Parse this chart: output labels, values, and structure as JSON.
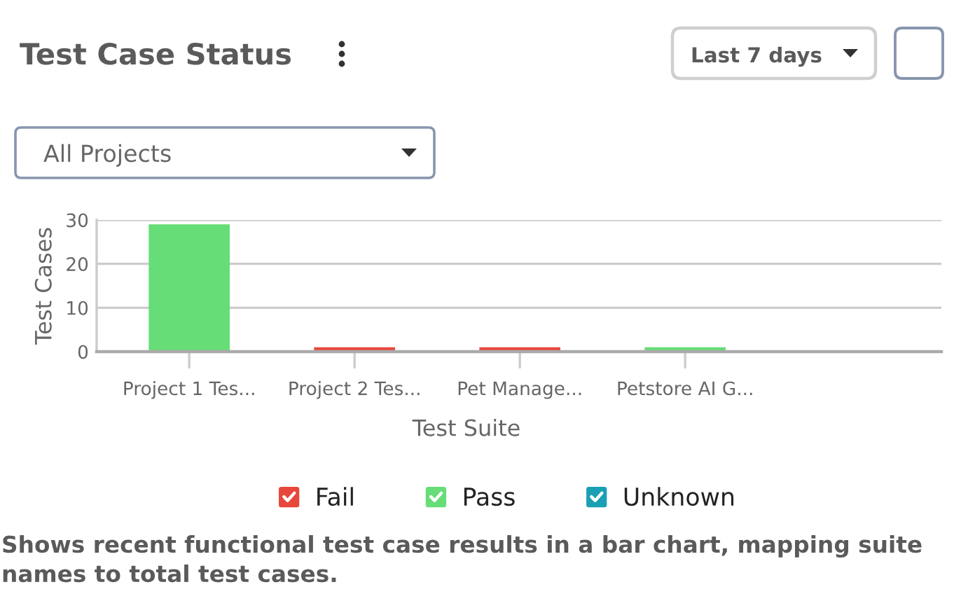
{
  "chart_data": {
    "type": "bar",
    "title": "Test Case Status",
    "xlabel": "Test Suite",
    "ylabel": "Test Cases",
    "categories": [
      "Project 1 Tes...",
      "Project 2 Tes...",
      "Pet Manage...",
      "Petstore AI G..."
    ],
    "series": [
      {
        "name": "Fail",
        "color": "#e8473b",
        "values": [
          null,
          1,
          1,
          null
        ]
      },
      {
        "name": "Pass",
        "color": "#66dd77",
        "values": [
          29,
          null,
          null,
          1
        ]
      },
      {
        "name": "Unknown",
        "values": [
          null,
          null,
          null,
          null
        ]
      }
    ],
    "stacked": true,
    "ylim": [
      0,
      30
    ],
    "yticks": [
      0,
      10,
      20,
      30
    ],
    "grid": "y",
    "legend": "bottom",
    "annotations": [
      "Last 7 days",
      "All Projects",
      "Shows recent functional test case results in a bar chart, mapping suite names to total test cases."
    ]
  }
}
